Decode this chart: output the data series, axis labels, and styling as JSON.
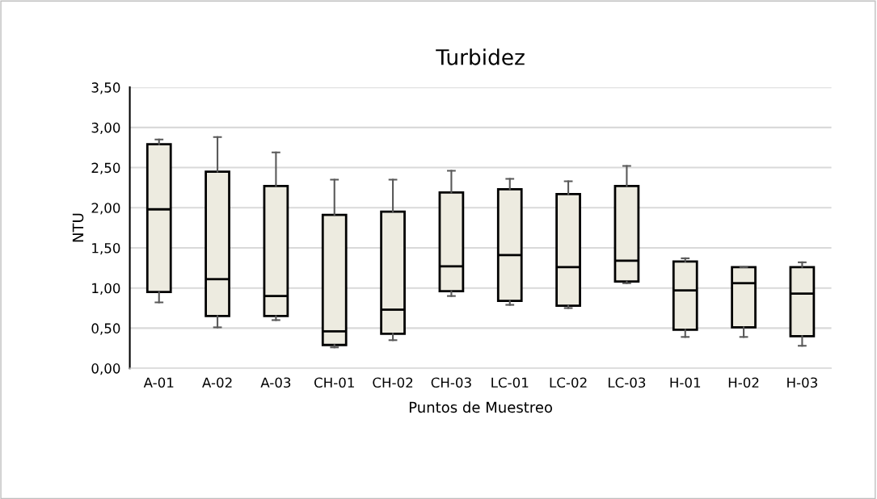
{
  "chart_data": {
    "type": "box",
    "title": "Turbidez",
    "xlabel": "Puntos de Muestreo",
    "ylabel": "NTU",
    "categories": [
      "A-01",
      "A-02",
      "A-03",
      "CH-01",
      "CH-02",
      "CH-03",
      "LC-01",
      "LC-02",
      "LC-03",
      "H-01",
      "H-02",
      "H-03"
    ],
    "color": "#edebe0",
    "boxes": [
      {
        "low": 0.82,
        "q1": 0.95,
        "median": 1.98,
        "q3": 2.79,
        "high": 2.85
      },
      {
        "low": 0.51,
        "q1": 0.65,
        "median": 1.11,
        "q3": 2.45,
        "high": 2.88
      },
      {
        "low": 0.6,
        "q1": 0.65,
        "median": 0.9,
        "q3": 2.27,
        "high": 2.69
      },
      {
        "low": 0.26,
        "q1": 0.29,
        "median": 0.46,
        "q3": 1.91,
        "high": 2.35
      },
      {
        "low": 0.35,
        "q1": 0.43,
        "median": 0.73,
        "q3": 1.95,
        "high": 2.35
      },
      {
        "low": 0.9,
        "q1": 0.96,
        "median": 1.27,
        "q3": 2.19,
        "high": 2.46
      },
      {
        "low": 0.79,
        "q1": 0.84,
        "median": 1.41,
        "q3": 2.23,
        "high": 2.36
      },
      {
        "low": 0.75,
        "q1": 0.78,
        "median": 1.26,
        "q3": 2.17,
        "high": 2.33
      },
      {
        "low": 1.06,
        "q1": 1.08,
        "median": 1.34,
        "q3": 2.27,
        "high": 2.52
      },
      {
        "low": 0.39,
        "q1": 0.48,
        "median": 0.97,
        "q3": 1.33,
        "high": 1.37
      },
      {
        "low": 0.39,
        "q1": 0.51,
        "median": 1.06,
        "q3": 1.26,
        "high": 1.26
      },
      {
        "low": 0.28,
        "q1": 0.4,
        "median": 0.93,
        "q3": 1.26,
        "high": 1.32
      }
    ],
    "ylim": [
      0,
      3.5
    ],
    "yticks": [
      {
        "value": 0,
        "label": "0,00"
      },
      {
        "value": 0.5,
        "label": "0,50"
      },
      {
        "value": 1,
        "label": "1,00"
      },
      {
        "value": 1.5,
        "label": "1,50"
      },
      {
        "value": 2,
        "label": "2,00"
      },
      {
        "value": 2.5,
        "label": "2,50"
      },
      {
        "value": 3,
        "label": "3,00"
      },
      {
        "value": 3.5,
        "label": "3,50"
      }
    ],
    "grid": "y"
  }
}
